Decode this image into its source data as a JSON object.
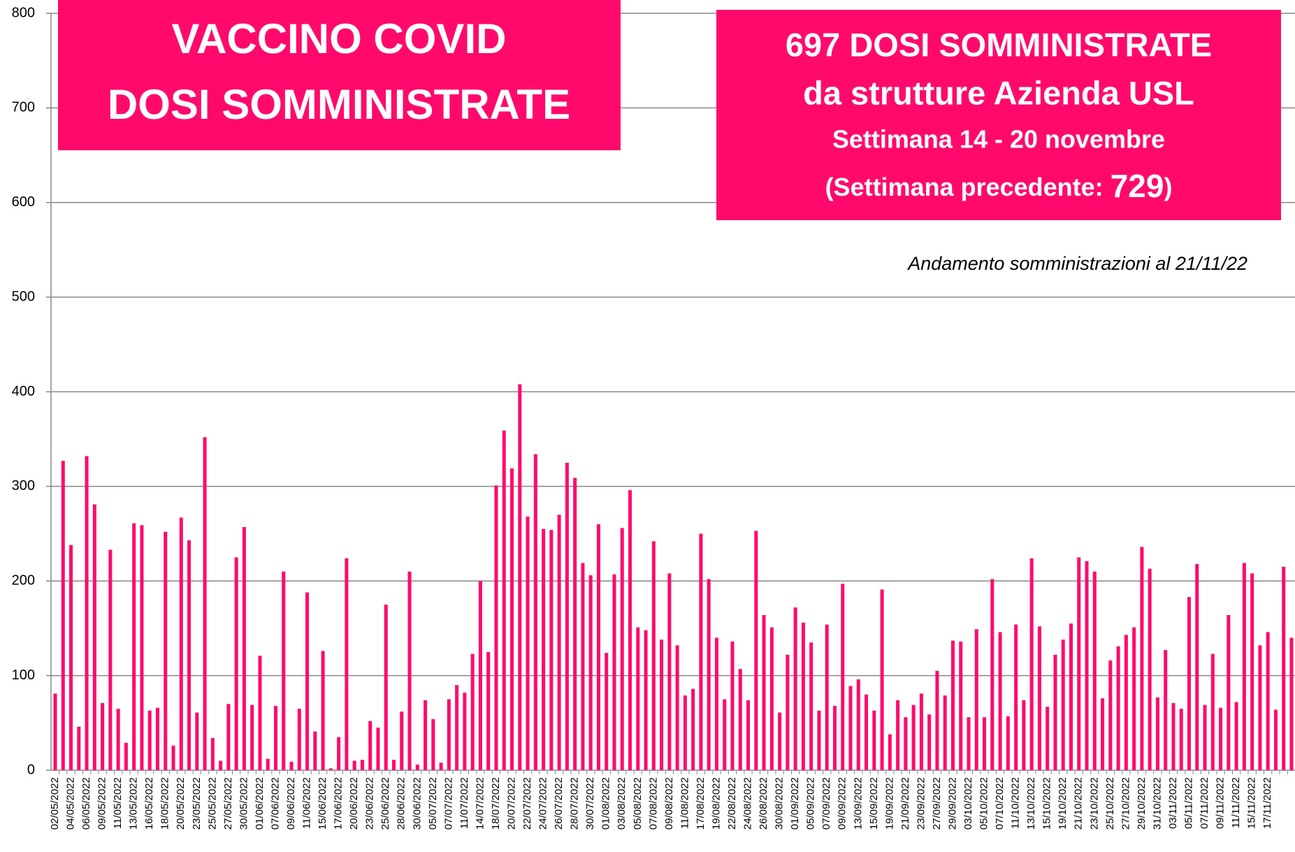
{
  "chart_data": {
    "type": "bar",
    "title_lines": [
      "VACCINO COVID",
      "DOSI SOMMINISTRATE"
    ],
    "info_box": {
      "lines": [
        "697 DOSI SOMMINISTRATE",
        "da strutture Azienda USL",
        "Settimana 14 - 20 novembre"
      ],
      "previous_prefix": "(Settimana precedente: ",
      "previous_value": 729,
      "previous_suffix": ")"
    },
    "annotation": "Andamento somministrazioni al 21/11/22",
    "color": "#ff0a6c",
    "ylim": [
      0,
      800
    ],
    "yticks": [
      0,
      100,
      200,
      300,
      400,
      500,
      600,
      700,
      800
    ],
    "grid": true,
    "categories": [
      "02/05/2022",
      null,
      "04/05/2022",
      null,
      "06/05/2022",
      null,
      "09/05/2022",
      null,
      "11/05/2022",
      null,
      "13/05/2022",
      null,
      "16/05/2022",
      null,
      "18/05/2022",
      null,
      "20/05/2022",
      null,
      "23/05/2022",
      null,
      "25/05/2022",
      null,
      "27/05/2022",
      null,
      "30/05/2022",
      null,
      "01/06/2022",
      null,
      "07/06/2022",
      null,
      "09/06/2022",
      null,
      "11/06/2022",
      null,
      "15/06/2022",
      null,
      "17/06/2022",
      null,
      "20/06/2022",
      null,
      "23/06/2022",
      null,
      "25/06/2022",
      null,
      "28/06/2022",
      null,
      "30/06/2022",
      null,
      "05/07/2022",
      null,
      "07/07/2022",
      null,
      "11/07/2022",
      null,
      "14/07/2022",
      null,
      "18/07/2022",
      null,
      "20/07/2022",
      null,
      "22/07/2022",
      null,
      "24/07/2022",
      null,
      "26/07/2022",
      null,
      "28/07/2022",
      null,
      "30/07/2022",
      null,
      "01/08/2022",
      null,
      "03/08/2022",
      null,
      "05/08/2022",
      null,
      "07/08/2022",
      null,
      "09/08/2022",
      null,
      "11/08/2022",
      null,
      "17/08/2022",
      null,
      "19/08/2022",
      null,
      "22/08/2022",
      null,
      "24/08/2022",
      null,
      "26/08/2022",
      null,
      "30/08/2022",
      null,
      "01/09/2022",
      null,
      "05/09/2022",
      null,
      "07/09/2022",
      null,
      "09/09/2022",
      null,
      "13/09/2022",
      null,
      "15/09/2022",
      null,
      "19/09/2022",
      null,
      "21/09/2022",
      null,
      "23/09/2022",
      null,
      "27/09/2022",
      null,
      "29/09/2022",
      null,
      "03/10/2022",
      null,
      "05/10/2022",
      null,
      "07/10/2022",
      null,
      "11/10/2022",
      null,
      "13/10/2022",
      null,
      "15/10/2022",
      null,
      "19/10/2022",
      null,
      "21/10/2022",
      null,
      "23/10/2022",
      null,
      "25/10/2022",
      null,
      "27/10/2022",
      null,
      "29/10/2022",
      null,
      "31/10/2022",
      null,
      "03/11/2022",
      null,
      "05/11/2022",
      null,
      "07/11/2022",
      null,
      "09/11/2022",
      null,
      "11/11/2022",
      null,
      "15/11/2022",
      null,
      "17/11/2022",
      null,
      null,
      null
    ],
    "values": [
      81,
      327,
      238,
      46,
      332,
      281,
      71,
      233,
      65,
      29,
      261,
      259,
      63,
      66,
      252,
      26,
      267,
      243,
      61,
      352,
      34,
      10,
      70,
      225,
      257,
      69,
      121,
      12,
      68,
      210,
      9,
      65,
      188,
      41,
      126,
      2,
      35,
      224,
      10,
      11,
      52,
      45,
      175,
      11,
      62,
      210,
      6,
      74,
      54,
      8,
      75,
      90,
      82,
      123,
      200,
      125,
      301,
      359,
      319,
      408,
      268,
      334,
      255,
      254,
      270,
      325,
      309,
      219,
      206,
      260,
      124,
      207,
      256,
      296,
      151,
      148,
      242,
      138,
      208,
      132,
      79,
      86,
      250,
      202,
      140,
      75,
      136,
      107,
      74,
      253,
      164,
      151,
      61,
      122,
      172,
      156,
      135,
      63,
      154,
      68,
      197,
      89,
      96,
      80,
      63,
      191,
      38,
      74,
      56,
      69,
      81,
      59,
      105,
      79,
      137,
      136,
      56,
      149,
      56,
      202,
      146,
      57,
      154,
      74,
      224,
      152,
      67,
      122,
      138,
      155,
      225,
      221,
      210,
      76,
      116,
      131,
      143,
      151,
      236,
      213,
      77,
      127,
      71,
      65,
      183,
      218,
      69,
      123,
      66,
      164,
      72,
      219,
      208,
      132,
      146,
      64,
      215,
      140
    ]
  }
}
